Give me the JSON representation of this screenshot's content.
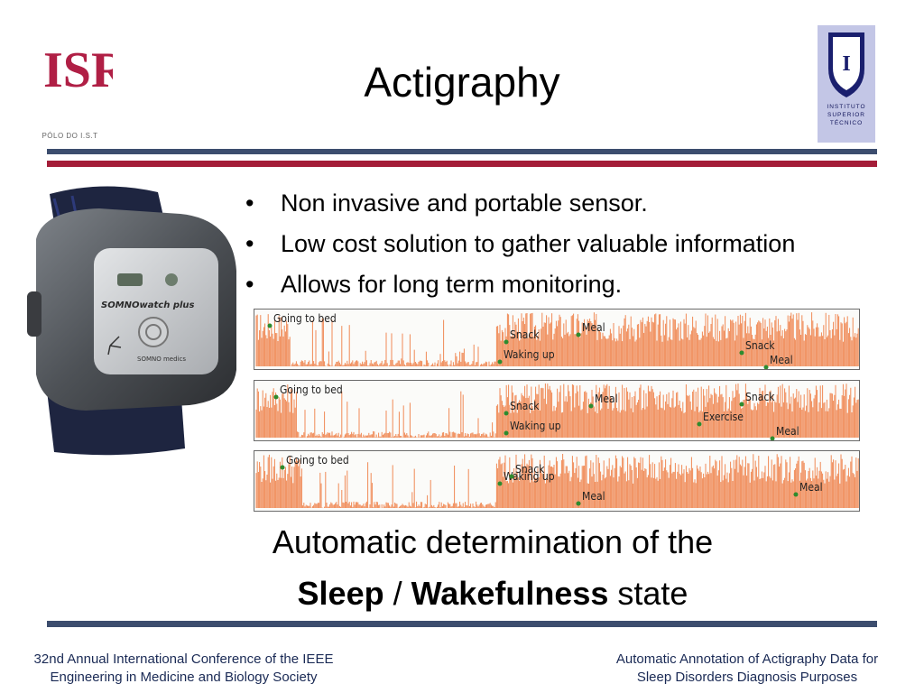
{
  "header": {
    "title": "Actigraphy",
    "isr_logo_text": "ISR",
    "isr_subtitle": "PÓLO DO I.S.T",
    "ist_logo_text": "INSTITUTO SUPERIOR TÉCNICO",
    "ist_lines": [
      "INSTITUTO",
      "SUPERIOR",
      "TÉCNICO"
    ]
  },
  "device": {
    "brand_label": "SOMNOwatch plus",
    "maker_label": "SOMNO medics"
  },
  "bullets": [
    "Non invasive and portable sensor.",
    "Low cost solution to gather valuable information",
    "Allows for long term monitoring."
  ],
  "bullet_symbol": "•",
  "activity_traces": [
    {
      "events": [
        {
          "label": "Going to bed",
          "pos": 0.02
        },
        {
          "label": "Snack",
          "pos": 0.41
        },
        {
          "label": "Waking up",
          "pos": 0.4
        },
        {
          "label": "Meal",
          "pos": 0.53
        },
        {
          "label": "Snack",
          "pos": 0.8
        },
        {
          "label": "Meal",
          "pos": 0.84
        }
      ]
    },
    {
      "events": [
        {
          "label": "Going to bed",
          "pos": 0.03
        },
        {
          "label": "Snack",
          "pos": 0.41
        },
        {
          "label": "Waking up",
          "pos": 0.41
        },
        {
          "label": "Meal",
          "pos": 0.55
        },
        {
          "label": "Exercise",
          "pos": 0.73
        },
        {
          "label": "Meal",
          "pos": 0.85
        },
        {
          "label": "Snack",
          "pos": 0.8
        }
      ]
    },
    {
      "events": [
        {
          "label": "Going to bed",
          "pos": 0.04
        },
        {
          "label": "Waking up",
          "pos": 0.4
        },
        {
          "label": "Meal",
          "pos": 0.53
        },
        {
          "label": "Snack",
          "pos": 0.42
        },
        {
          "label": "Meal",
          "pos": 0.89
        }
      ]
    }
  ],
  "caption": {
    "line1": "Automatic determination of the",
    "sleep": "Sleep",
    "separator": "/",
    "wakefulness": "Wakefulness",
    "tail": "state"
  },
  "footer": {
    "left_line1": "32nd Annual International Conference of the IEEE",
    "left_line2": "Engineering in Medicine and Biology Society",
    "right_line1": "Automatic Annotation of Actigraphy Data for",
    "right_line2": "Sleep Disorders Diagnosis Purposes"
  },
  "colors": {
    "accent_red": "#a41d38",
    "rule_blue": "#3c4d6e",
    "trace_orange": "#f08a56",
    "ist_blue": "#c3c6e6",
    "event_dot": "#2e8b2e"
  }
}
